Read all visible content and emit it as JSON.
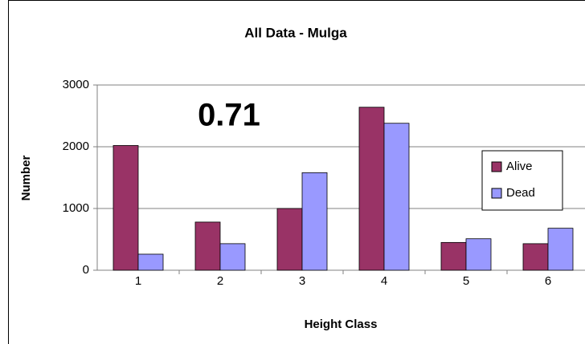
{
  "chart_data": {
    "type": "bar",
    "title": "All Data - Mulga",
    "xlabel": "Height Class",
    "ylabel": "Number",
    "annotation": "0.71",
    "categories": [
      "1",
      "2",
      "3",
      "4",
      "5",
      "6"
    ],
    "series": [
      {
        "name": "Alive",
        "color": "#993366",
        "values": [
          2020,
          780,
          1000,
          2640,
          450,
          430
        ]
      },
      {
        "name": "Dead",
        "color": "#9999ff",
        "values": [
          260,
          430,
          1580,
          2380,
          510,
          680
        ]
      }
    ],
    "ylim": [
      0,
      3000
    ],
    "yticks": [
      0,
      1000,
      2000,
      3000
    ],
    "grid": true,
    "legend": "right"
  }
}
